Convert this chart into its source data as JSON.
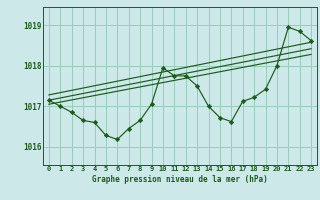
{
  "title": "Graphe pression niveau de la mer (hPa)",
  "bg_color": "#cce8e8",
  "grid_color": "#99ccbb",
  "line_color": "#1a5c1a",
  "xlim": [
    -0.5,
    23.5
  ],
  "ylim": [
    1015.55,
    1019.45
  ],
  "yticks": [
    1016,
    1017,
    1018,
    1019
  ],
  "xtick_labels": [
    "0",
    "1",
    "2",
    "3",
    "4",
    "5",
    "6",
    "7",
    "8",
    "9",
    "10",
    "11",
    "12",
    "13",
    "14",
    "15",
    "16",
    "17",
    "18",
    "19",
    "20",
    "21",
    "22",
    "23"
  ],
  "data_line": [
    1017.15,
    1017.0,
    1016.85,
    1016.65,
    1016.6,
    1016.28,
    1016.18,
    1016.45,
    1016.65,
    1017.05,
    1017.95,
    1017.75,
    1017.75,
    1017.5,
    1017.0,
    1016.72,
    1016.62,
    1017.12,
    1017.22,
    1017.42,
    1018.0,
    1018.95,
    1018.85,
    1018.62
  ],
  "trend1": [
    1017.05,
    1018.28
  ],
  "trend2": [
    1017.15,
    1018.42
  ],
  "trend3": [
    1017.28,
    1018.58
  ]
}
